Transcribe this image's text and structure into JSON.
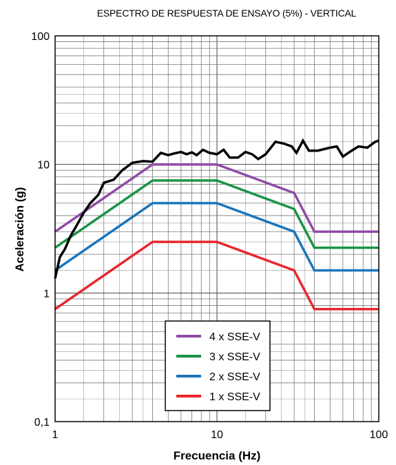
{
  "chart_data": {
    "type": "line",
    "title": "ESPECTRO DE RESPUESTA DE ENSAYO (5%) - VERTICAL",
    "xlabel": "Frecuencia (Hz)",
    "ylabel": "Aceleración (g)",
    "xscale": "log",
    "yscale": "log",
    "xlim": [
      1,
      100
    ],
    "ylim": [
      0.1,
      100
    ],
    "grid": true,
    "legend_position": "bottom-center",
    "x_ticks": [
      "1",
      "10",
      "100"
    ],
    "y_ticks": [
      "0,1",
      "1",
      "10",
      "100"
    ],
    "series": [
      {
        "color": "#000000",
        "points": [
          [
            1,
            1.3
          ],
          [
            1.07,
            1.9
          ],
          [
            1.15,
            2.2
          ],
          [
            1.25,
            2.8
          ],
          [
            1.35,
            3.3
          ],
          [
            1.5,
            4.2
          ],
          [
            1.65,
            5.0
          ],
          [
            1.85,
            5.8
          ],
          [
            2.0,
            7.2
          ],
          [
            2.3,
            7.6
          ],
          [
            2.6,
            9.0
          ],
          [
            3.0,
            10.3
          ],
          [
            3.5,
            10.6
          ],
          [
            4.0,
            10.5
          ],
          [
            4.5,
            12.3
          ],
          [
            5.0,
            11.8
          ],
          [
            5.5,
            12.2
          ],
          [
            6.0,
            12.5
          ],
          [
            6.5,
            12.0
          ],
          [
            7.0,
            12.4
          ],
          [
            7.5,
            11.8
          ],
          [
            8.2,
            13.0
          ],
          [
            9.0,
            12.3
          ],
          [
            10.0,
            12.0
          ],
          [
            11.0,
            13.0
          ],
          [
            12.0,
            11.3
          ],
          [
            13.5,
            11.3
          ],
          [
            15.0,
            12.5
          ],
          [
            16.5,
            12.0
          ],
          [
            18.0,
            11.0
          ],
          [
            20.0,
            12.0
          ],
          [
            23.0,
            15.0
          ],
          [
            26.0,
            14.5
          ],
          [
            29.0,
            13.8
          ],
          [
            31.0,
            12.3
          ],
          [
            34.0,
            15.3
          ],
          [
            37.0,
            12.8
          ],
          [
            42.0,
            12.8
          ],
          [
            50.0,
            13.5
          ],
          [
            55.0,
            13.8
          ],
          [
            60.0,
            11.5
          ],
          [
            68.0,
            12.8
          ],
          [
            75.0,
            13.8
          ],
          [
            85.0,
            13.5
          ],
          [
            95.0,
            15.0
          ],
          [
            100.0,
            15.3
          ]
        ]
      },
      {
        "name": "4 x SSE-V",
        "color": "#8e4ba6",
        "points": [
          [
            1,
            3.0
          ],
          [
            4,
            10.0
          ],
          [
            10,
            10.0
          ],
          [
            30,
            6.0
          ],
          [
            40,
            3.0
          ],
          [
            100,
            3.0
          ]
        ]
      },
      {
        "name": "3 x SSE-V",
        "color": "#1a9446",
        "points": [
          [
            1,
            2.25
          ],
          [
            4,
            7.5
          ],
          [
            10,
            7.5
          ],
          [
            30,
            4.5
          ],
          [
            40,
            2.25
          ],
          [
            100,
            2.25
          ]
        ]
      },
      {
        "name": "2 x SSE-V",
        "color": "#1b75bb",
        "points": [
          [
            1,
            1.5
          ],
          [
            4,
            5.0
          ],
          [
            10,
            5.0
          ],
          [
            30,
            3.0
          ],
          [
            40,
            1.5
          ],
          [
            100,
            1.5
          ]
        ]
      },
      {
        "name": "1 x SSE-V",
        "color": "#e8262d",
        "points": [
          [
            1,
            0.75
          ],
          [
            4,
            2.5
          ],
          [
            10,
            2.5
          ],
          [
            30,
            1.5
          ],
          [
            40,
            0.75
          ],
          [
            100,
            0.75
          ]
        ]
      }
    ]
  }
}
